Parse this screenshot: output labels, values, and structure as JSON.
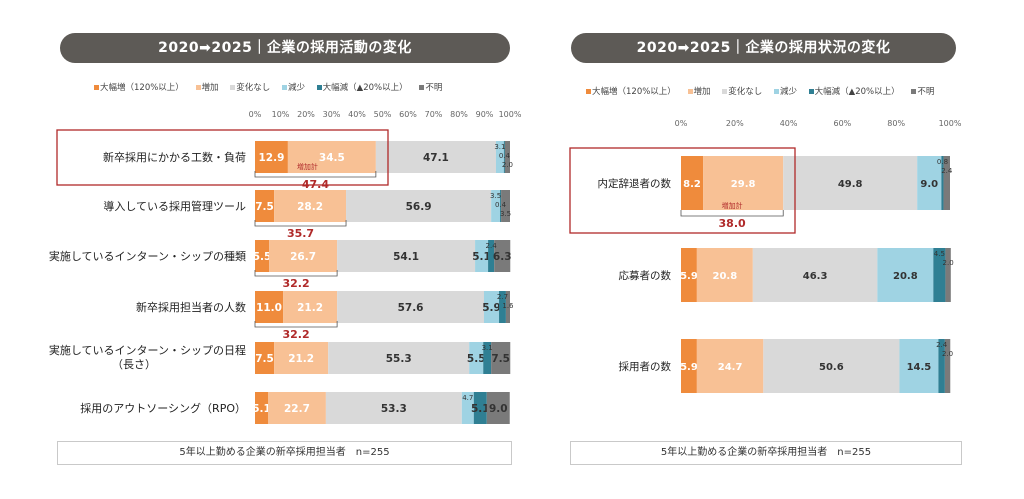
{
  "colors": {
    "大幅増": "#ef8b3c",
    "増加": "#f8c195",
    "変化なし": "#d9d9d9",
    "減少": "#9fd3e3",
    "大幅減": "#2f7f93",
    "不明": "#7a7a7a",
    "title_bg": "#5d5a56",
    "highlight": "#b02a2a"
  },
  "chart_data": [
    {
      "type": "bar",
      "stacked": true,
      "orientation": "horizontal",
      "title": "2020➡2025｜企業の採用活動の変化",
      "legend": [
        "大幅増（120%以上）",
        "増加",
        "変化なし",
        "減少",
        "大幅減（▲20%以上）",
        "不明"
      ],
      "x_ticks": [
        "0%",
        "10%",
        "20%",
        "30%",
        "40%",
        "50%",
        "60%",
        "70%",
        "80%",
        "90%",
        "100%"
      ],
      "xlim": [
        0,
        100
      ],
      "categories": [
        "新卒採用にかかる工数・負荷",
        "導入している採用管理ツール",
        "実施しているインターン・シップの種類",
        "新卒採用担当者の人数",
        "実施しているインターン・シップの日程（長さ）",
        "採用のアウトソーシング（RPO）"
      ],
      "series": [
        {
          "name": "大幅増（120%以上）",
          "values": [
            12.9,
            7.5,
            5.5,
            11.0,
            7.5,
            5.1
          ]
        },
        {
          "name": "増加",
          "values": [
            34.5,
            28.2,
            26.7,
            21.2,
            21.2,
            22.7
          ]
        },
        {
          "name": "変化なし",
          "values": [
            47.1,
            56.9,
            54.1,
            57.6,
            55.3,
            53.3
          ]
        },
        {
          "name": "減少",
          "values": [
            3.1,
            3.5,
            5.1,
            5.9,
            5.5,
            4.7
          ]
        },
        {
          "name": "大幅減（▲20%以上）",
          "values": [
            0.4,
            0.4,
            2.4,
            2.7,
            3.1,
            5.1
          ]
        },
        {
          "name": "不明",
          "values": [
            2.0,
            3.5,
            6.3,
            1.6,
            7.5,
            9.0
          ]
        }
      ],
      "increase_total_label": "増加計",
      "increase_totals": [
        "47.4",
        "35.7",
        "32.2",
        "32.2",
        null,
        null
      ],
      "highlighted_category": "新卒採用にかかる工数・負荷",
      "footer": "5年以上勤める企業の新卒採用担当者　n=255"
    },
    {
      "type": "bar",
      "stacked": true,
      "orientation": "horizontal",
      "title": "2020➡2025｜企業の採用状況の変化",
      "legend": [
        "大幅増（120%以上）",
        "増加",
        "変化なし",
        "減少",
        "大幅減（▲20%以上）",
        "不明"
      ],
      "x_ticks": [
        "0%",
        "20%",
        "40%",
        "60%",
        "80%",
        "100%"
      ],
      "xlim": [
        0,
        100
      ],
      "categories": [
        "内定辞退者の数",
        "応募者の数",
        "採用者の数"
      ],
      "series": [
        {
          "name": "大幅増（120%以上）",
          "values": [
            8.2,
            5.9,
            5.9
          ]
        },
        {
          "name": "増加",
          "values": [
            29.8,
            20.8,
            24.7
          ]
        },
        {
          "name": "変化なし",
          "values": [
            49.8,
            46.3,
            50.6
          ]
        },
        {
          "name": "減少",
          "values": [
            9.0,
            20.8,
            14.5
          ]
        },
        {
          "name": "大幅減（▲20%以上）",
          "values": [
            0.8,
            4.5,
            2.4
          ]
        },
        {
          "name": "不明",
          "values": [
            2.4,
            2.0,
            2.0
          ]
        }
      ],
      "increase_total_label": "増加計",
      "increase_totals": [
        "38.0",
        null,
        null
      ],
      "highlighted_category": "内定辞退者の数",
      "footer": "5年以上勤める企業の新卒採用担当者　n=255"
    }
  ]
}
